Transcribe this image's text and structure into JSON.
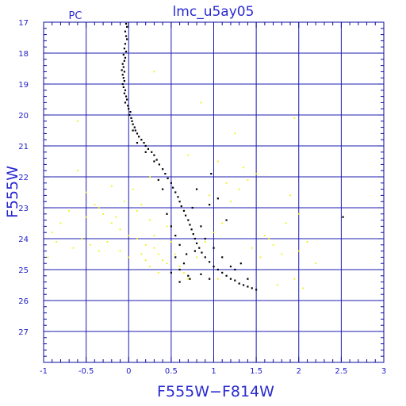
{
  "chart_data": {
    "type": "scatter",
    "title": "lmc_u5ay05",
    "camera_label": "PC",
    "xlabel": "F555W−F814W",
    "ylabel": "F555W",
    "xlim": [
      -1,
      3
    ],
    "ylim": [
      28,
      17
    ],
    "y_inverted": true,
    "grid": true,
    "x_major_ticks": [
      -1,
      -0.5,
      0,
      0.5,
      1,
      1.5,
      2,
      2.5,
      3
    ],
    "x_tick_labels": [
      "-1",
      "-0.5",
      "0",
      "0.5",
      "1",
      "1.5",
      "2",
      "2.5",
      "3"
    ],
    "y_major_ticks": [
      17,
      18,
      19,
      20,
      21,
      22,
      23,
      24,
      25,
      26,
      27
    ],
    "y_tick_labels": [
      "17",
      "18",
      "19",
      "20",
      "21",
      "22",
      "23",
      "24",
      "25",
      "26",
      "27"
    ],
    "colors": {
      "axes": "#0a0aa0",
      "grid": "#1c1cb0",
      "text": "#2a2ad0",
      "series_main": "#000000",
      "series_field": "#f0f000"
    },
    "series": [
      {
        "color": "#000000",
        "points": [
          [
            -0.03,
            17.05
          ],
          [
            -0.02,
            17.15
          ],
          [
            -0.04,
            17.3
          ],
          [
            -0.03,
            17.45
          ],
          [
            -0.02,
            17.55
          ],
          [
            -0.04,
            17.7
          ],
          [
            -0.05,
            17.85
          ],
          [
            -0.03,
            17.95
          ],
          [
            -0.06,
            18.05
          ],
          [
            -0.04,
            18.15
          ],
          [
            -0.05,
            18.25
          ],
          [
            -0.07,
            18.35
          ],
          [
            -0.06,
            18.45
          ],
          [
            -0.08,
            18.55
          ],
          [
            -0.05,
            18.6
          ],
          [
            -0.07,
            18.7
          ],
          [
            -0.06,
            18.8
          ],
          [
            -0.05,
            18.9
          ],
          [
            -0.07,
            19.0
          ],
          [
            -0.06,
            19.1
          ],
          [
            -0.04,
            19.2
          ],
          [
            -0.05,
            19.3
          ],
          [
            -0.03,
            19.4
          ],
          [
            -0.02,
            19.5
          ],
          [
            -0.04,
            19.6
          ],
          [
            -0.01,
            19.7
          ],
          [
            0.0,
            19.8
          ],
          [
            0.02,
            19.9
          ],
          [
            0.01,
            20.0
          ],
          [
            0.03,
            20.1
          ],
          [
            0.04,
            20.2
          ],
          [
            0.05,
            20.3
          ],
          [
            0.07,
            20.4
          ],
          [
            0.08,
            20.5
          ],
          [
            0.1,
            20.6
          ],
          [
            0.12,
            20.7
          ],
          [
            0.15,
            20.8
          ],
          [
            0.18,
            20.9
          ],
          [
            0.2,
            21.0
          ],
          [
            0.23,
            21.1
          ],
          [
            0.27,
            21.2
          ],
          [
            0.3,
            21.3
          ],
          [
            0.33,
            21.45
          ],
          [
            0.36,
            21.6
          ],
          [
            0.4,
            21.75
          ],
          [
            0.43,
            21.9
          ],
          [
            0.46,
            22.05
          ],
          [
            0.5,
            22.2
          ],
          [
            0.52,
            22.35
          ],
          [
            0.55,
            22.5
          ],
          [
            0.58,
            22.65
          ],
          [
            0.6,
            22.8
          ],
          [
            0.62,
            22.95
          ],
          [
            0.65,
            23.1
          ],
          [
            0.67,
            23.25
          ],
          [
            0.7,
            23.4
          ],
          [
            0.72,
            23.55
          ],
          [
            0.74,
            23.7
          ],
          [
            0.76,
            23.85
          ],
          [
            0.78,
            24.0
          ],
          [
            0.8,
            24.15
          ],
          [
            0.83,
            24.3
          ],
          [
            0.86,
            24.45
          ],
          [
            0.9,
            24.6
          ],
          [
            0.95,
            24.75
          ],
          [
            1.0,
            24.9
          ],
          [
            1.05,
            25.0
          ],
          [
            1.1,
            25.1
          ],
          [
            1.15,
            25.2
          ],
          [
            1.2,
            25.3
          ],
          [
            1.25,
            25.35
          ],
          [
            1.3,
            25.45
          ],
          [
            1.35,
            25.5
          ],
          [
            1.4,
            25.55
          ],
          [
            1.45,
            25.6
          ],
          [
            1.5,
            25.65
          ],
          [
            0.6,
            25.0
          ],
          [
            0.7,
            25.2
          ],
          [
            0.55,
            24.6
          ],
          [
            0.65,
            24.8
          ],
          [
            0.85,
            25.15
          ],
          [
            0.95,
            25.3
          ],
          [
            0.75,
            23.0
          ],
          [
            0.85,
            23.6
          ],
          [
            0.9,
            24.0
          ],
          [
            1.0,
            24.3
          ],
          [
            1.1,
            24.6
          ],
          [
            1.2,
            24.9
          ],
          [
            0.45,
            23.2
          ],
          [
            0.5,
            23.6
          ],
          [
            0.55,
            23.9
          ],
          [
            0.6,
            24.2
          ],
          [
            1.05,
            22.7
          ],
          [
            0.95,
            22.9
          ],
          [
            1.15,
            23.4
          ],
          [
            0.8,
            22.4
          ],
          [
            0.3,
            21.5
          ],
          [
            0.2,
            21.2
          ],
          [
            0.1,
            20.9
          ],
          [
            0.05,
            20.5
          ],
          [
            0.35,
            22.1
          ],
          [
            0.4,
            22.4
          ],
          [
            2.52,
            23.3
          ],
          [
            0.97,
            21.9
          ],
          [
            1.25,
            25.0
          ],
          [
            1.32,
            24.8
          ],
          [
            1.4,
            25.3
          ],
          [
            0.5,
            25.1
          ],
          [
            0.6,
            25.4
          ],
          [
            0.72,
            25.3
          ],
          [
            0.68,
            24.5
          ],
          [
            0.78,
            24.4
          ]
        ]
      },
      {
        "color": "#f0f000",
        "points": [
          [
            -0.6,
            21.8
          ],
          [
            -0.5,
            22.5
          ],
          [
            -0.4,
            22.9
          ],
          [
            -0.3,
            23.2
          ],
          [
            -0.2,
            23.5
          ],
          [
            -0.1,
            23.7
          ],
          [
            0.0,
            23.9
          ],
          [
            0.1,
            24.0
          ],
          [
            0.2,
            24.2
          ],
          [
            0.3,
            24.3
          ],
          [
            0.35,
            24.5
          ],
          [
            0.4,
            24.7
          ],
          [
            -0.7,
            23.1
          ],
          [
            -0.8,
            23.5
          ],
          [
            -0.9,
            23.8
          ],
          [
            -0.55,
            24.0
          ],
          [
            -0.45,
            24.2
          ],
          [
            -0.35,
            24.4
          ],
          [
            -0.25,
            24.1
          ],
          [
            -0.15,
            23.3
          ],
          [
            -0.05,
            22.8
          ],
          [
            0.05,
            22.4
          ],
          [
            0.15,
            22.9
          ],
          [
            0.25,
            23.4
          ],
          [
            0.3,
            23.9
          ],
          [
            0.45,
            23.6
          ],
          [
            0.5,
            24.1
          ],
          [
            0.55,
            24.5
          ],
          [
            0.6,
            24.9
          ],
          [
            0.65,
            25.1
          ],
          [
            0.7,
            25.3
          ],
          [
            0.8,
            24.6
          ],
          [
            0.9,
            24.1
          ],
          [
            1.0,
            23.8
          ],
          [
            1.1,
            23.5
          ],
          [
            1.2,
            22.8
          ],
          [
            1.3,
            22.4
          ],
          [
            1.4,
            22.1
          ],
          [
            1.5,
            21.9
          ],
          [
            1.6,
            23.9
          ],
          [
            1.7,
            24.2
          ],
          [
            1.8,
            24.5
          ],
          [
            1.9,
            22.6
          ],
          [
            2.0,
            23.2
          ],
          [
            2.1,
            24.1
          ],
          [
            2.2,
            24.8
          ],
          [
            1.75,
            25.5
          ],
          [
            1.95,
            25.3
          ],
          [
            2.05,
            25.6
          ],
          [
            -0.6,
            20.2
          ],
          [
            0.3,
            18.6
          ],
          [
            0.85,
            19.6
          ],
          [
            1.25,
            20.6
          ],
          [
            1.35,
            21.7
          ],
          [
            1.95,
            20.1
          ],
          [
            1.05,
            21.5
          ],
          [
            0.7,
            21.3
          ],
          [
            0.25,
            22.0
          ],
          [
            -0.2,
            22.3
          ],
          [
            -0.35,
            23.0
          ],
          [
            -0.5,
            23.3
          ],
          [
            -0.65,
            24.3
          ],
          [
            -0.85,
            24.1
          ],
          [
            -0.95,
            24.6
          ],
          [
            0.15,
            24.5
          ],
          [
            0.2,
            24.7
          ],
          [
            0.25,
            24.9
          ],
          [
            0.35,
            25.1
          ],
          [
            1.45,
            24.3
          ],
          [
            1.55,
            24.6
          ],
          [
            1.65,
            24.0
          ],
          [
            2.0,
            24.4
          ],
          [
            1.85,
            23.5
          ],
          [
            1.15,
            22.2
          ],
          [
            0.95,
            22.6
          ],
          [
            0.1,
            23.1
          ],
          [
            -0.1,
            24.4
          ],
          [
            0.0,
            24.6
          ],
          [
            0.45,
            24.8
          ],
          [
            1.05,
            25.3
          ]
        ]
      }
    ]
  }
}
